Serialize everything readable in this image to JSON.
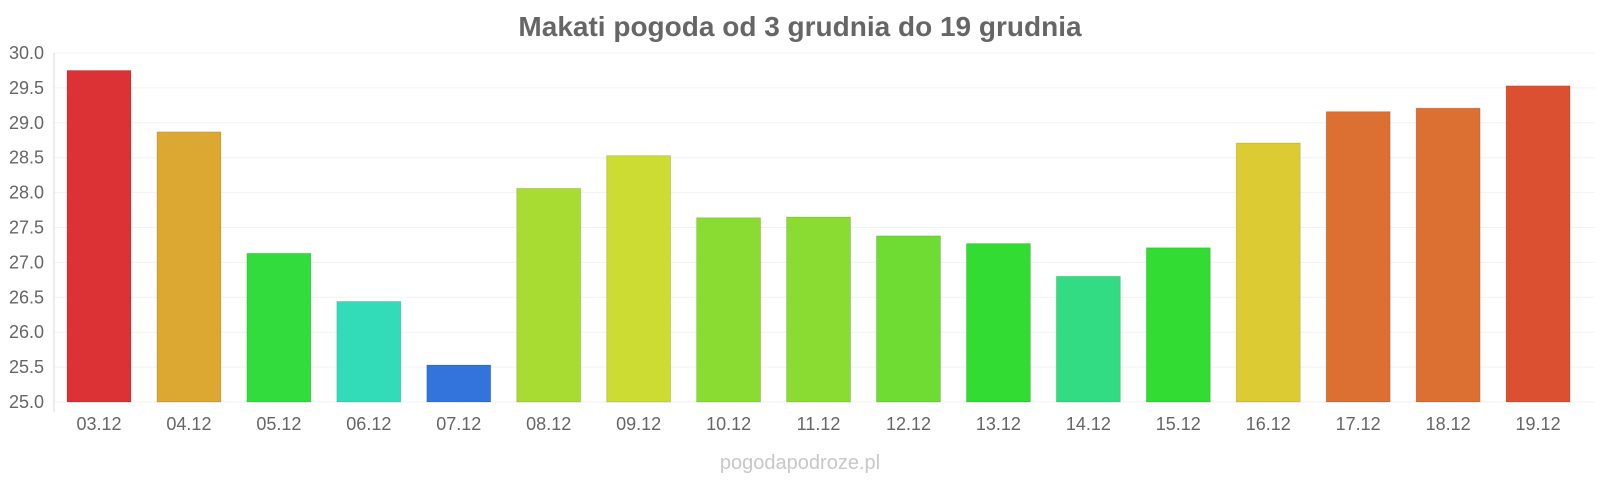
{
  "watermark": "pogodapodroze.pl",
  "chart_data": {
    "type": "bar",
    "title": "Makati pogoda od 3 grudnia do 19 grudnia",
    "xlabel": "",
    "ylabel": "",
    "ylim": [
      25.0,
      30.0
    ],
    "yticks": [
      "25.0",
      "25.5",
      "26.0",
      "26.5",
      "27.0",
      "27.5",
      "28.0",
      "28.5",
      "29.0",
      "29.5",
      "30.0"
    ],
    "grid": true,
    "legend": "none",
    "categories": [
      "03.12",
      "04.12",
      "05.12",
      "06.12",
      "07.12",
      "08.12",
      "09.12",
      "10.12",
      "11.12",
      "12.12",
      "13.12",
      "14.12",
      "15.12",
      "16.12",
      "17.12",
      "18.12",
      "19.12"
    ],
    "values": [
      29.75,
      28.87,
      27.13,
      26.44,
      25.53,
      28.06,
      28.53,
      27.64,
      27.65,
      27.38,
      27.27,
      26.8,
      27.21,
      28.71,
      29.16,
      29.21,
      29.53
    ],
    "colors": [
      "#dc3235",
      "#dca832",
      "#32dc3c",
      "#32dcb9",
      "#3273dc",
      "#a8dc32",
      "#ccdc32",
      "#8bdc32",
      "#8bdc32",
      "#6edc32",
      "#32dc32",
      "#32dc82",
      "#32dc32",
      "#dccb32",
      "#dc6f32",
      "#dc6f32",
      "#dc5032"
    ]
  }
}
